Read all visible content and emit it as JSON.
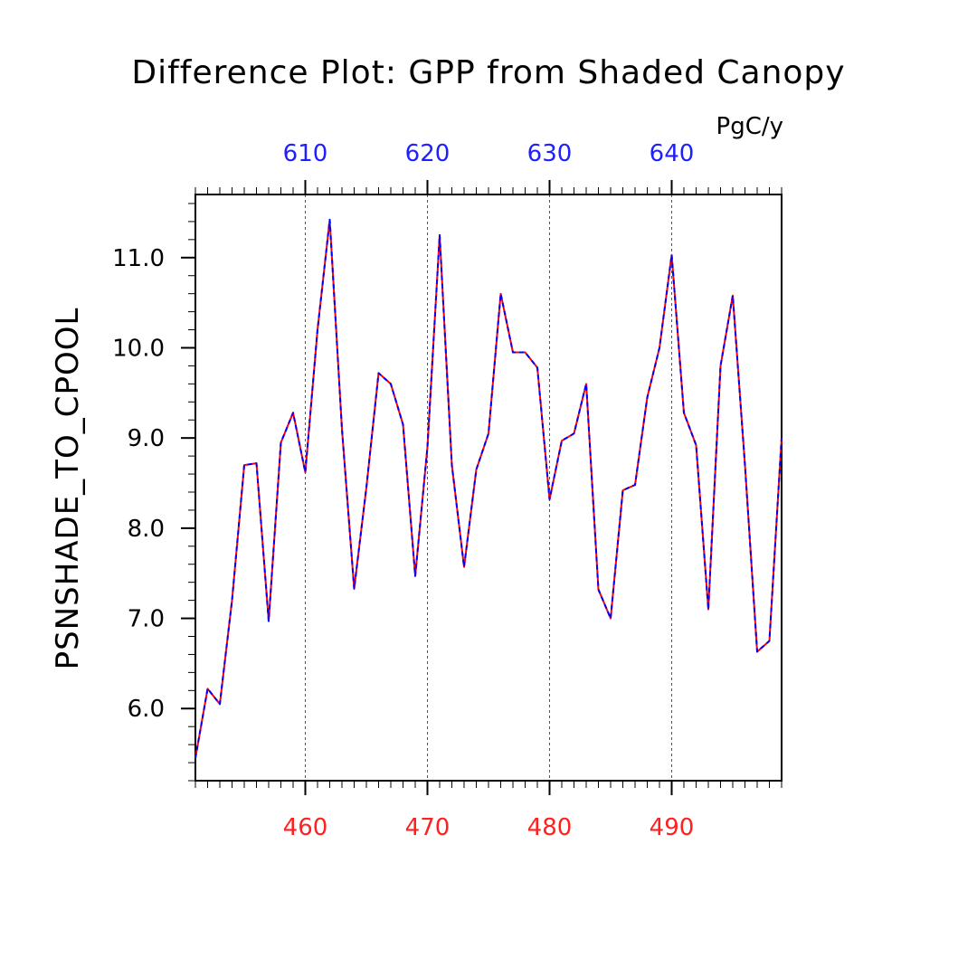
{
  "chart_data": {
    "type": "line",
    "title": "Difference Plot: GPP from Shaded Canopy",
    "units": "PgC/y",
    "ylabel": "PSNSHADE_TO_CPOOL",
    "xlim": [
      451,
      499
    ],
    "ylim": [
      5.2,
      11.7
    ],
    "yticks": [
      6.0,
      7.0,
      8.0,
      9.0,
      10.0,
      11.0
    ],
    "ytick_labels": [
      "6.0",
      "7.0",
      "8.0",
      "9.0",
      "10.0",
      "11.0"
    ],
    "xticks_bottom": [
      460,
      470,
      480,
      490
    ],
    "xticks_bottom_labels": [
      "460",
      "470",
      "480",
      "490"
    ],
    "xticks_bottom_color": "#ff2020",
    "xticks_top_labels": [
      "610",
      "620",
      "630",
      "640"
    ],
    "xticks_top_color": "#2020ff",
    "grid_x": true,
    "series": [
      {
        "color": "#ff0000",
        "x": [
          451,
          452,
          453,
          454,
          455,
          456,
          457,
          458,
          459,
          460,
          461,
          462,
          463,
          464,
          465,
          466,
          467,
          468,
          469,
          470,
          471,
          472,
          473,
          474,
          475,
          476,
          477,
          478,
          479,
          480,
          481,
          482,
          483,
          484,
          485,
          486,
          487,
          488,
          489,
          490,
          491,
          492,
          493,
          494,
          495,
          496,
          497,
          498,
          499
        ],
        "values": [
          5.45,
          6.22,
          6.05,
          7.2,
          8.7,
          8.72,
          6.97,
          8.95,
          9.28,
          8.62,
          10.2,
          11.42,
          9.1,
          7.33,
          8.45,
          9.72,
          9.6,
          9.15,
          7.47,
          8.9,
          11.25,
          8.7,
          7.57,
          8.65,
          9.05,
          10.6,
          9.95,
          9.95,
          9.78,
          8.32,
          8.97,
          9.05,
          9.6,
          7.32,
          7.0,
          8.42,
          8.48,
          9.45,
          10.0,
          11.03,
          9.28,
          8.92,
          7.1,
          9.8,
          10.58,
          8.7,
          6.63,
          6.75,
          9.0
        ]
      },
      {
        "color": "#0000ff",
        "x": [
          451,
          452,
          453,
          454,
          455,
          456,
          457,
          458,
          459,
          460,
          461,
          462,
          463,
          464,
          465,
          466,
          467,
          468,
          469,
          470,
          471,
          472,
          473,
          474,
          475,
          476,
          477,
          478,
          479,
          480,
          481,
          482,
          483,
          484,
          485,
          486,
          487,
          488,
          489,
          490,
          491,
          492,
          493,
          494,
          495,
          496,
          497,
          498,
          499
        ],
        "values": [
          5.45,
          6.22,
          6.05,
          7.2,
          8.7,
          8.72,
          6.97,
          8.95,
          9.28,
          8.62,
          10.2,
          11.42,
          9.1,
          7.33,
          8.45,
          9.72,
          9.6,
          9.15,
          7.47,
          8.9,
          11.25,
          8.7,
          7.57,
          8.65,
          9.05,
          10.6,
          9.95,
          9.95,
          9.78,
          8.32,
          8.97,
          9.05,
          9.6,
          7.32,
          7.0,
          8.42,
          8.48,
          9.45,
          10.0,
          11.03,
          9.28,
          8.92,
          7.1,
          9.8,
          10.58,
          8.7,
          6.63,
          6.75,
          9.0
        ]
      }
    ]
  }
}
